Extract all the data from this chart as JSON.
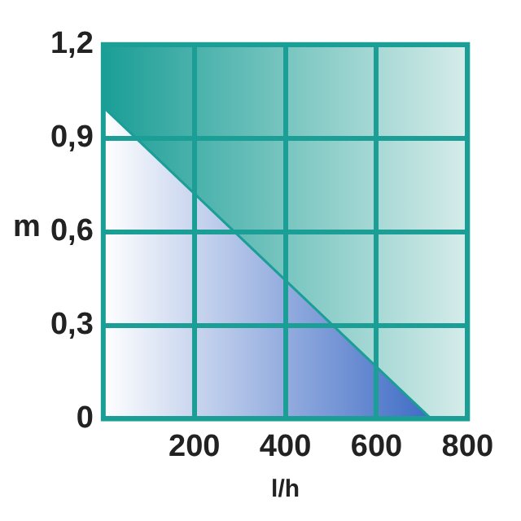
{
  "chart_data": {
    "type": "area",
    "xlabel": "l/h",
    "ylabel": "m",
    "series": [
      {
        "color": "#1a9e96",
        "x": [
          0,
          720
        ],
        "values": [
          1.0,
          0
        ]
      }
    ],
    "xlim": [
      0,
      800
    ],
    "xticks": [
      200,
      400,
      600,
      800
    ],
    "ylim": [
      0,
      1.2
    ],
    "yticks": [
      0,
      {
        "value": 0.3,
        "label": "0,3"
      },
      {
        "value": 0.6,
        "label": "0,6"
      },
      {
        "value": 0.9,
        "label": "0,9"
      },
      {
        "value": 1.2,
        "label": "1,2"
      }
    ],
    "grid": true,
    "legend": false,
    "marker": "none"
  }
}
